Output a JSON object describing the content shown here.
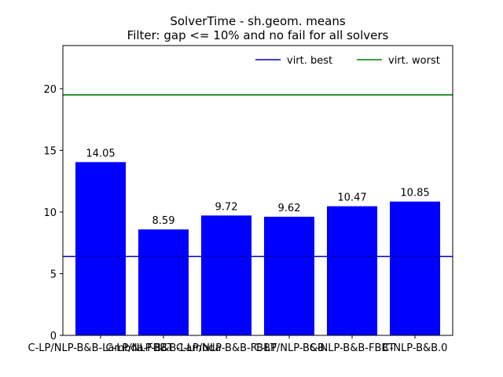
{
  "chart_data": {
    "type": "bar",
    "title": "SolverTime - sh.geom. means",
    "subtitle": "Filter: gap <= 10% and no fail for all solvers",
    "xlabel": "",
    "ylabel": "",
    "ylim": [
      0,
      23.5
    ],
    "yticks": [
      0,
      5,
      10,
      15,
      20
    ],
    "categories": [
      "C-LP/NLP-B&B-Lambda-FBBT",
      "C-LP/NLP-B&B-Lambda",
      "C-LP/NLP-B&B-FBBT",
      "C-LP/NLP-B&B",
      "C-NLP-B&B-FBBT",
      "C-NLP-B&B.0"
    ],
    "values": [
      14.05,
      8.59,
      9.72,
      9.62,
      10.47,
      10.85
    ],
    "value_labels": [
      "14.05",
      "8.59",
      "9.72",
      "9.62",
      "10.47",
      "10.85"
    ],
    "bar_color": "#0000ff",
    "reference_lines": [
      {
        "name": "virt. best",
        "value": 6.4,
        "color": "#0000bf"
      },
      {
        "name": "virt. worst",
        "value": 19.5,
        "color": "#008000"
      }
    ],
    "legend_position": "top-right",
    "grid": false
  }
}
